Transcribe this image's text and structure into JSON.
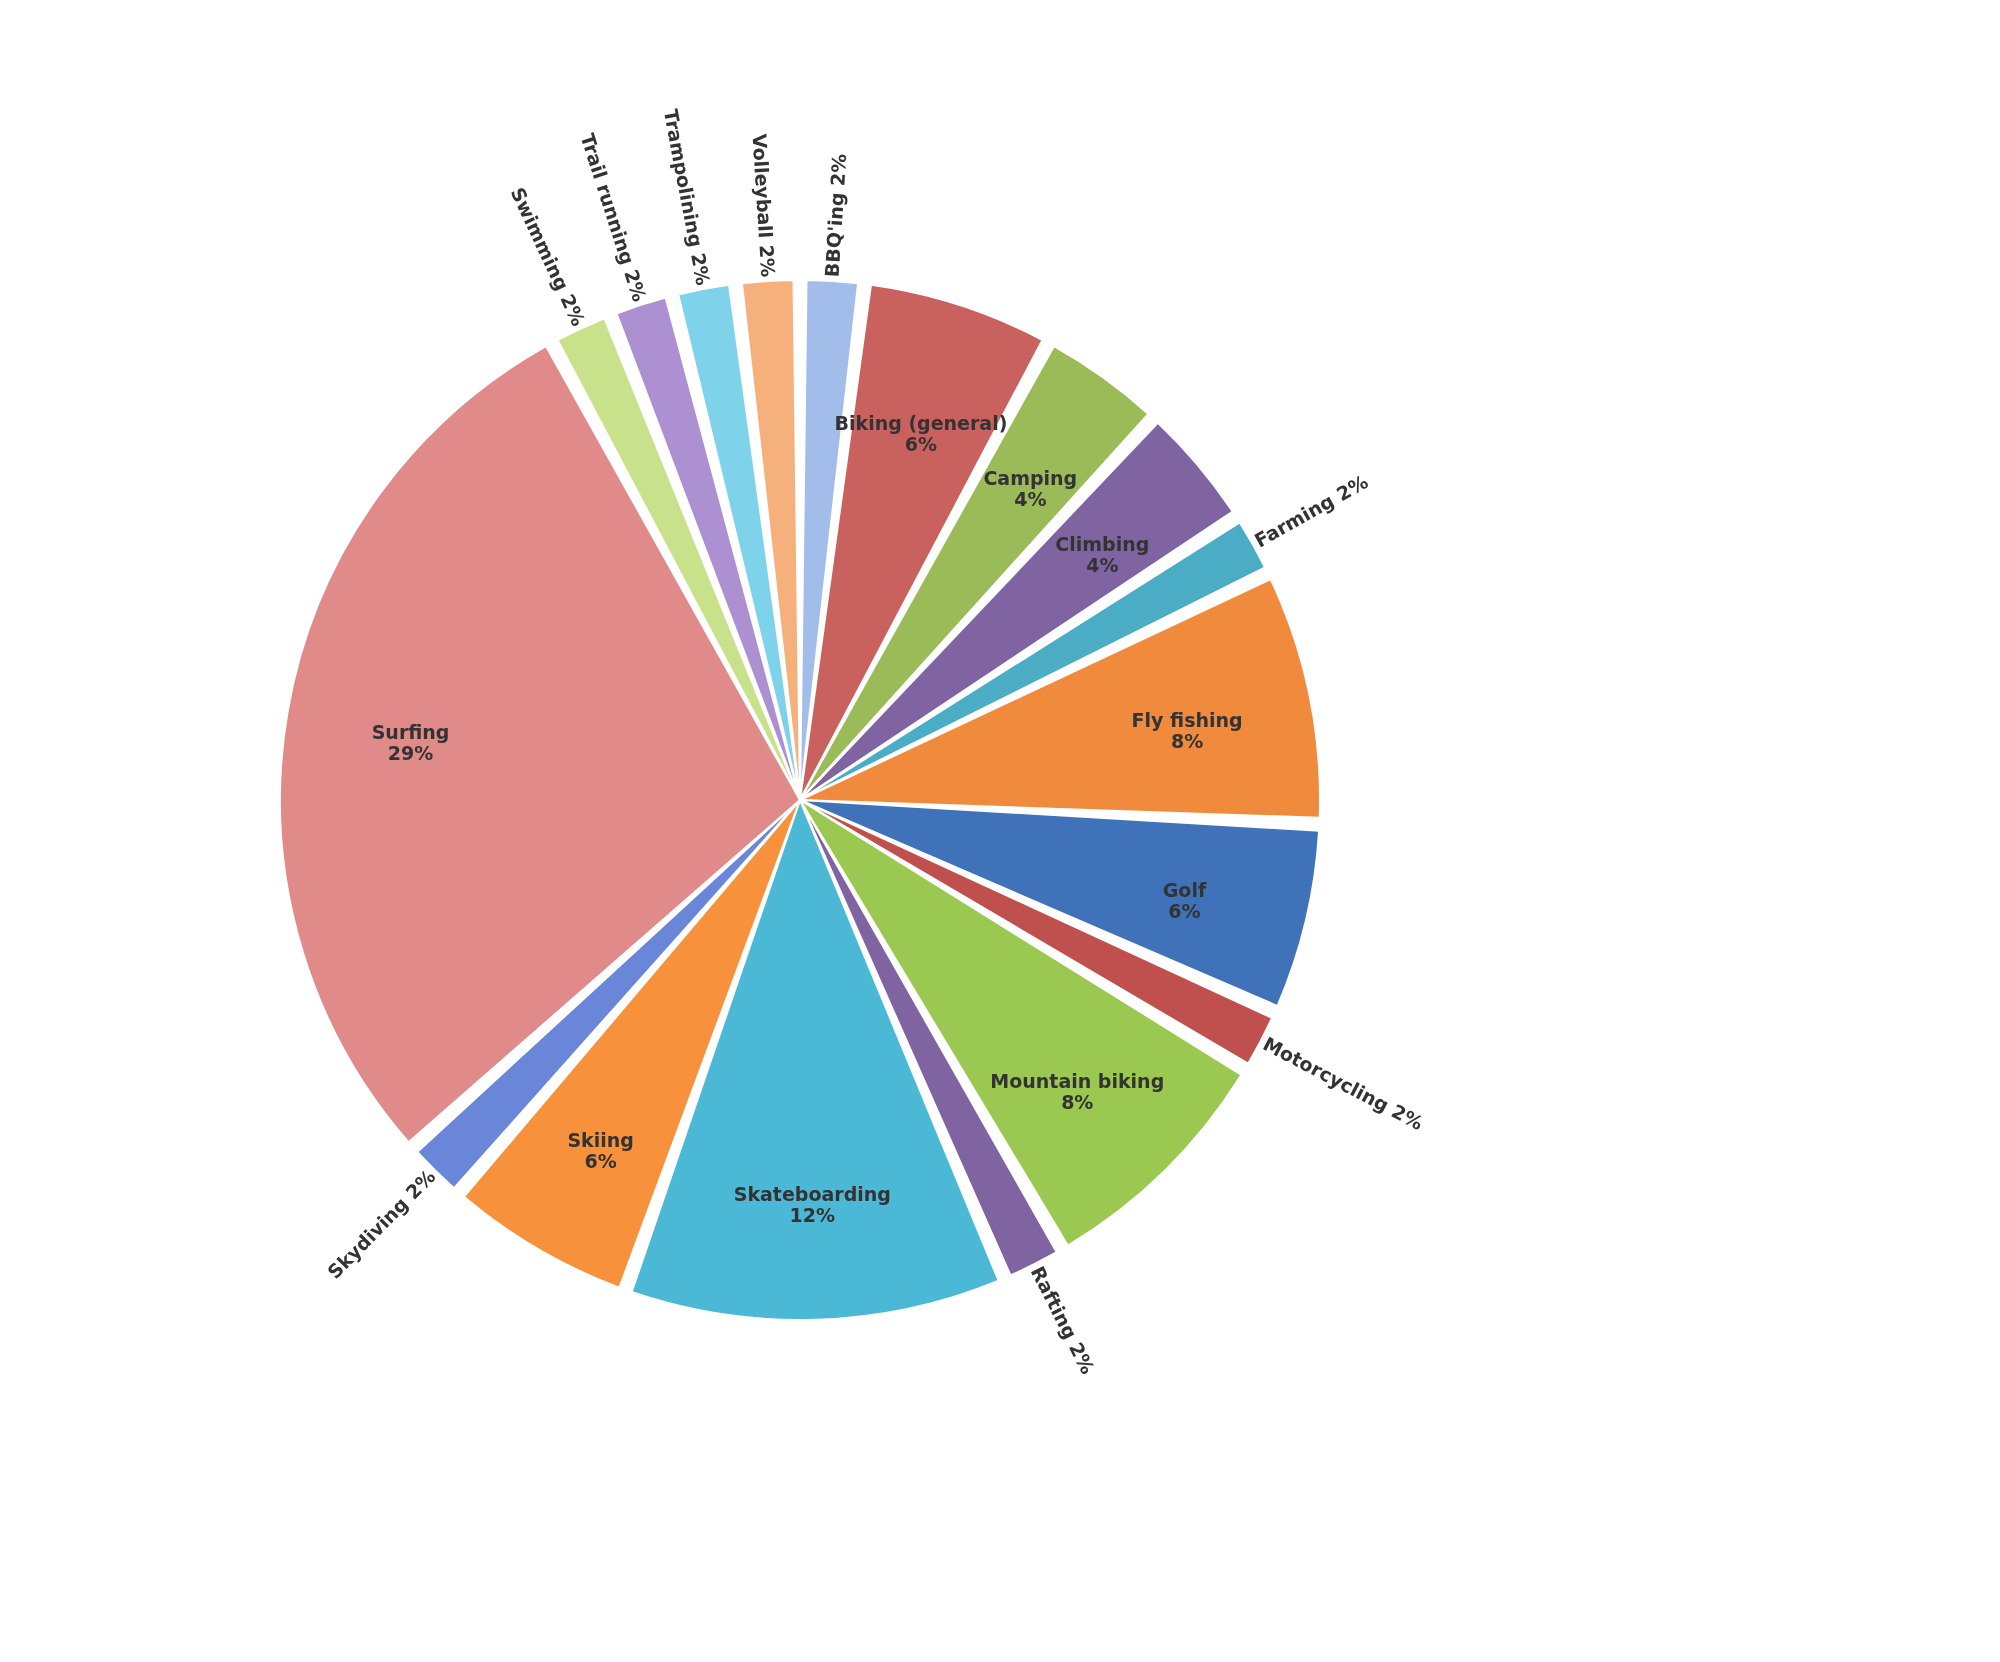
{
  "chart_data": {
    "type": "pie",
    "categories": [
      "BBQ'ing",
      "Biking (general)",
      "Camping",
      "Climbing",
      "Farming",
      "Fly fishing",
      "Golf",
      "Motorcycling",
      "Mountain biking",
      "Rafting",
      "Skateboarding",
      "Skiing",
      "Skydiving",
      "Surfing",
      "Swimming",
      "Trail running",
      "Trampolining",
      "Volleyball"
    ],
    "values": [
      2,
      6,
      4,
      4,
      2,
      8,
      6,
      2,
      8,
      2,
      12,
      6,
      2,
      29,
      2,
      2,
      2,
      2
    ],
    "value_labels": [
      "2%",
      "6%",
      "4%",
      "4%",
      "2%",
      "8%",
      "6%",
      "2%",
      "8%",
      "2%",
      "12%",
      "6%",
      "2%",
      "29%",
      "2%",
      "2%",
      "2%",
      "2%"
    ],
    "colors": [
      "#a3bdea",
      "#c9625f",
      "#9bbb59",
      "#8064a2",
      "#4bacc6",
      "#f08a3c",
      "#3f72b8",
      "#c0504d",
      "#9bc850",
      "#8064a2",
      "#4bb8d6",
      "#f7913c",
      "#6a86d8",
      "#e08a8a",
      "#c8e28c",
      "#ad90d2",
      "#7ed2ea",
      "#f6b07c"
    ]
  }
}
